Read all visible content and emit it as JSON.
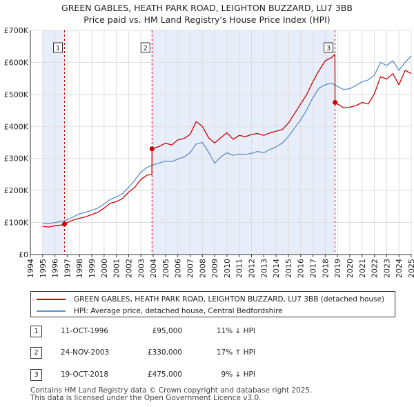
{
  "title_line1": "GREEN GABLES, HEATH PARK ROAD, LEIGHTON BUZZARD, LU7 3BB",
  "title_line2": "Price paid vs. HM Land Registry's House Price Index (HPI)",
  "chart_data": {
    "type": "line",
    "xlim": [
      1994,
      2025
    ],
    "ylim": [
      0,
      700000
    ],
    "y_ticks": [
      0,
      100000,
      200000,
      300000,
      400000,
      500000,
      600000,
      700000
    ],
    "y_tick_labels": [
      "£0",
      "£100K",
      "£200K",
      "£300K",
      "£400K",
      "£500K",
      "£600K",
      "£700K"
    ],
    "x_ticks": [
      1994,
      1995,
      1996,
      1997,
      1998,
      1999,
      2000,
      2001,
      2002,
      2003,
      2004,
      2005,
      2006,
      2007,
      2008,
      2009,
      2010,
      2011,
      2012,
      2013,
      2014,
      2015,
      2016,
      2017,
      2018,
      2019,
      2020,
      2021,
      2022,
      2023,
      2024,
      2025
    ],
    "x_tick_labels": [
      "1994",
      "1995",
      "1996",
      "1997",
      "1998",
      "1999",
      "2000",
      "2001",
      "2002",
      "2003",
      "2004",
      "2005",
      "2006",
      "2007",
      "2008",
      "2009",
      "2010",
      "2011",
      "2012",
      "2013",
      "2014",
      "2015",
      "2016",
      "2017",
      "2018",
      "2019",
      "2020",
      "2021",
      "2022",
      "2023",
      "2024",
      "2025"
    ],
    "shaded_periods": [
      [
        1995.0,
        1996.78
      ],
      [
        2003.9,
        2018.8
      ]
    ],
    "series": [
      {
        "name": "GREEN GABLES, HEATH PARK ROAD, LEIGHTON BUZZARD, LU7 3BB (detached house)",
        "color": "#cc0000",
        "x": [
          1995.0,
          1995.5,
          1996.0,
          1996.5,
          1996.78,
          1997.0,
          1997.5,
          1998.0,
          1998.5,
          1999.0,
          1999.5,
          2000.0,
          2000.5,
          2001.0,
          2001.5,
          2002.0,
          2002.5,
          2003.0,
          2003.5,
          2003.89,
          2003.9,
          2004.5,
          2005.0,
          2005.5,
          2006.0,
          2006.5,
          2007.0,
          2007.5,
          2008.0,
          2008.5,
          2009.0,
          2009.5,
          2010.0,
          2010.5,
          2011.0,
          2011.5,
          2012.0,
          2012.5,
          2013.0,
          2013.5,
          2014.0,
          2014.5,
          2015.0,
          2015.5,
          2016.0,
          2016.5,
          2017.0,
          2017.5,
          2018.0,
          2018.5,
          2018.79,
          2018.8,
          2019.0,
          2019.5,
          2020.0,
          2020.5,
          2021.0,
          2021.5,
          2022.0,
          2022.5,
          2023.0,
          2023.5,
          2024.0,
          2024.5,
          2025.0
        ],
        "y": [
          88000,
          86000,
          90000,
          92000,
          95000,
          100000,
          108000,
          113000,
          118000,
          125000,
          132000,
          145000,
          160000,
          165000,
          175000,
          195000,
          210000,
          235000,
          248000,
          250000,
          330000,
          338000,
          348000,
          342000,
          358000,
          362000,
          375000,
          415000,
          400000,
          365000,
          348000,
          365000,
          380000,
          360000,
          372000,
          368000,
          375000,
          378000,
          372000,
          380000,
          385000,
          390000,
          410000,
          440000,
          470000,
          500000,
          540000,
          575000,
          605000,
          615000,
          625000,
          475000,
          470000,
          458000,
          460000,
          465000,
          475000,
          470000,
          502000,
          555000,
          548000,
          565000,
          530000,
          575000,
          565000
        ]
      },
      {
        "name": "HPI: Average price, detached house, Central Bedfordshire",
        "color": "#5a8ec9",
        "x": [
          1995.0,
          1995.5,
          1996.0,
          1996.5,
          1997.0,
          1997.5,
          1998.0,
          1998.5,
          1999.0,
          1999.5,
          2000.0,
          2000.5,
          2001.0,
          2001.5,
          2002.0,
          2002.5,
          2003.0,
          2003.5,
          2004.0,
          2004.5,
          2005.0,
          2005.5,
          2006.0,
          2006.5,
          2007.0,
          2007.5,
          2008.0,
          2008.5,
          2009.0,
          2009.5,
          2010.0,
          2010.5,
          2011.0,
          2011.5,
          2012.0,
          2012.5,
          2013.0,
          2013.5,
          2014.0,
          2014.5,
          2015.0,
          2015.5,
          2016.0,
          2016.5,
          2017.0,
          2017.5,
          2018.0,
          2018.5,
          2019.0,
          2019.5,
          2020.0,
          2020.5,
          2021.0,
          2021.5,
          2022.0,
          2022.5,
          2023.0,
          2023.5,
          2024.0,
          2024.5,
          2025.0
        ],
        "y": [
          98000,
          97000,
          100000,
          103000,
          108000,
          118000,
          127000,
          132000,
          138000,
          145000,
          158000,
          172000,
          180000,
          190000,
          210000,
          232000,
          258000,
          272000,
          280000,
          286000,
          292000,
          290000,
          298000,
          305000,
          318000,
          345000,
          350000,
          320000,
          285000,
          305000,
          318000,
          310000,
          314000,
          312000,
          316000,
          322000,
          318000,
          328000,
          336000,
          348000,
          368000,
          395000,
          420000,
          452000,
          490000,
          520000,
          530000,
          535000,
          525000,
          515000,
          518000,
          528000,
          540000,
          545000,
          560000,
          600000,
          590000,
          605000,
          575000,
          600000,
          620000
        ]
      }
    ],
    "sale_markers": [
      {
        "label": "1",
        "x": 1996.78,
        "y": 95000
      },
      {
        "label": "2",
        "x": 2003.9,
        "y": 330000
      },
      {
        "label": "3",
        "x": 2018.8,
        "y": 475000
      }
    ]
  },
  "legend": {
    "property_label": "GREEN GABLES, HEATH PARK ROAD, LEIGHTON BUZZARD, LU7 3BB (detached house)",
    "hpi_label": "HPI: Average price, detached house, Central Bedfordshire",
    "property_color": "#cc0000",
    "hpi_color": "#5a8ec9"
  },
  "sales": [
    {
      "num": "1",
      "date": "11-OCT-1996",
      "price": "£95,000",
      "hpi": "11% ↓ HPI"
    },
    {
      "num": "2",
      "date": "24-NOV-2003",
      "price": "£330,000",
      "hpi": "17% ↑ HPI"
    },
    {
      "num": "3",
      "date": "19-OCT-2018",
      "price": "£475,000",
      "hpi": "9% ↓ HPI"
    }
  ],
  "footer_line1": "Contains HM Land Registry data © Crown copyright and database right 2025.",
  "footer_line2": "This data is licensed under the Open Government Licence v3.0."
}
